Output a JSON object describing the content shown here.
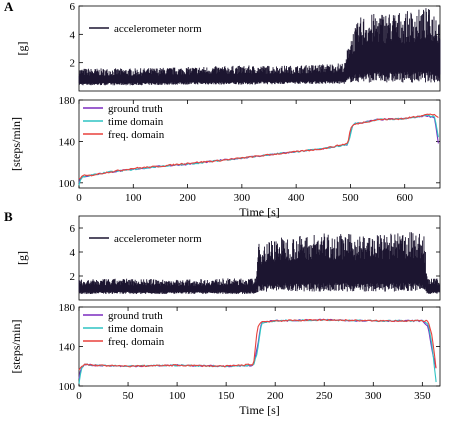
{
  "chart_data": [
    {
      "panel_label": "A",
      "type": "area",
      "ylabel": "[g]",
      "ylim": [
        0,
        6
      ],
      "yticks": [
        2,
        4,
        6
      ],
      "xlim": [
        0,
        665
      ],
      "grid": false,
      "legend": "top-left",
      "series": [
        {
          "name": "accelerometer norm",
          "color": "#1c1530",
          "envelope": {
            "x": [
              0,
              100,
              200,
              300,
              400,
              490,
              498,
              520,
              560,
              600,
              640,
              665
            ],
            "lower": [
              0.4,
              0.4,
              0.45,
              0.45,
              0.5,
              0.5,
              0.6,
              0.6,
              0.6,
              0.6,
              0.6,
              0.6
            ],
            "upper": [
              1.6,
              1.6,
              1.7,
              1.8,
              1.8,
              2.0,
              3.8,
              5.3,
              5.6,
              5.6,
              5.9,
              5.5
            ]
          }
        }
      ]
    },
    {
      "panel_label": "A",
      "type": "line",
      "xlabel": "Time [s]",
      "ylabel": "[steps/min]",
      "xlim": [
        0,
        665
      ],
      "ylim": [
        95,
        180
      ],
      "xticks": [
        0,
        100,
        200,
        300,
        400,
        500,
        600
      ],
      "yticks": [
        100,
        140,
        180
      ],
      "grid": false,
      "legend": "top-left",
      "series": [
        {
          "name": "ground truth",
          "color": "#7b2cbf",
          "x": [
            0,
            3,
            8,
            20,
            50,
            100,
            150,
            200,
            250,
            300,
            350,
            400,
            450,
            495,
            500,
            505,
            520,
            550,
            600,
            640,
            655,
            662
          ],
          "y": [
            100,
            104,
            106,
            107,
            110,
            113,
            116,
            118,
            121,
            124,
            127,
            130,
            133,
            137,
            148,
            157,
            158,
            161,
            162,
            165,
            163,
            138
          ]
        },
        {
          "name": "time domain",
          "color": "#2ec4c4",
          "x": [
            0,
            3,
            8,
            20,
            50,
            100,
            150,
            200,
            250,
            300,
            350,
            400,
            450,
            495,
            500,
            505,
            520,
            550,
            600,
            640,
            655,
            662
          ],
          "y": [
            98,
            103,
            106,
            107,
            110,
            113,
            116,
            118,
            121,
            124,
            127,
            130,
            133,
            137,
            146,
            157,
            158,
            161,
            162,
            165,
            164,
            144
          ]
        },
        {
          "name": "freq. domain",
          "color": "#e8413c",
          "x": [
            0,
            3,
            8,
            20,
            50,
            100,
            150,
            200,
            250,
            300,
            350,
            400,
            450,
            495,
            500,
            505,
            520,
            550,
            600,
            640,
            655,
            662
          ],
          "y": [
            104,
            105,
            107,
            107,
            110,
            114,
            116,
            119,
            121,
            124,
            127,
            130,
            133,
            138,
            152,
            156,
            158,
            161,
            162,
            166,
            166,
            163
          ]
        }
      ]
    },
    {
      "panel_label": "B",
      "type": "area",
      "ylabel": "[g]",
      "ylim": [
        0,
        7
      ],
      "yticks": [
        2,
        4,
        6
      ],
      "xlim": [
        0,
        368
      ],
      "grid": false,
      "legend": "top-left",
      "series": [
        {
          "name": "accelerometer norm",
          "color": "#1c1530",
          "envelope": {
            "x": [
              0,
              50,
              100,
              150,
              180,
              183,
              200,
              250,
              300,
              340,
              352,
              355,
              368
            ],
            "lower": [
              0.5,
              0.5,
              0.5,
              0.5,
              0.5,
              0.7,
              0.7,
              0.7,
              0.7,
              0.7,
              0.7,
              0.5,
              0.5
            ],
            "upper": [
              1.7,
              1.8,
              1.7,
              1.8,
              1.8,
              4.7,
              5.2,
              5.6,
              5.4,
              5.7,
              5.5,
              1.8,
              1.8
            ]
          }
        }
      ]
    },
    {
      "panel_label": "B",
      "type": "line",
      "xlabel": "Time [s]",
      "ylabel": "[steps/min]",
      "xlim": [
        0,
        368
      ],
      "ylim": [
        100,
        180
      ],
      "xticks": [
        0,
        50,
        100,
        150,
        200,
        250,
        300,
        350
      ],
      "yticks": [
        100,
        140,
        180
      ],
      "grid": false,
      "legend": "top-left",
      "series": [
        {
          "name": "ground truth",
          "color": "#7b2cbf",
          "x": [
            0,
            2,
            6,
            15,
            50,
            100,
            150,
            178,
            182,
            186,
            200,
            250,
            300,
            350,
            356,
            360,
            364
          ],
          "y": [
            108,
            118,
            122,
            121,
            120,
            121,
            120,
            121,
            140,
            165,
            166,
            167,
            166,
            166,
            160,
            135,
            118
          ]
        },
        {
          "name": "time domain",
          "color": "#2ec4c4",
          "x": [
            0,
            2,
            6,
            15,
            50,
            100,
            150,
            178,
            182,
            186,
            200,
            250,
            300,
            350,
            356,
            360,
            364
          ],
          "y": [
            103,
            116,
            122,
            121,
            120,
            121,
            120,
            121,
            135,
            164,
            166,
            167,
            166,
            166,
            163,
            140,
            104
          ]
        },
        {
          "name": "freq. domain",
          "color": "#e8413c",
          "x": [
            0,
            2,
            6,
            15,
            50,
            100,
            150,
            178,
            182,
            186,
            200,
            250,
            300,
            350,
            356,
            360,
            364
          ],
          "y": [
            116,
            119,
            122,
            121,
            120,
            121,
            120,
            122,
            160,
            165,
            166,
            167,
            166,
            166,
            166,
            150,
            118
          ]
        }
      ]
    }
  ]
}
